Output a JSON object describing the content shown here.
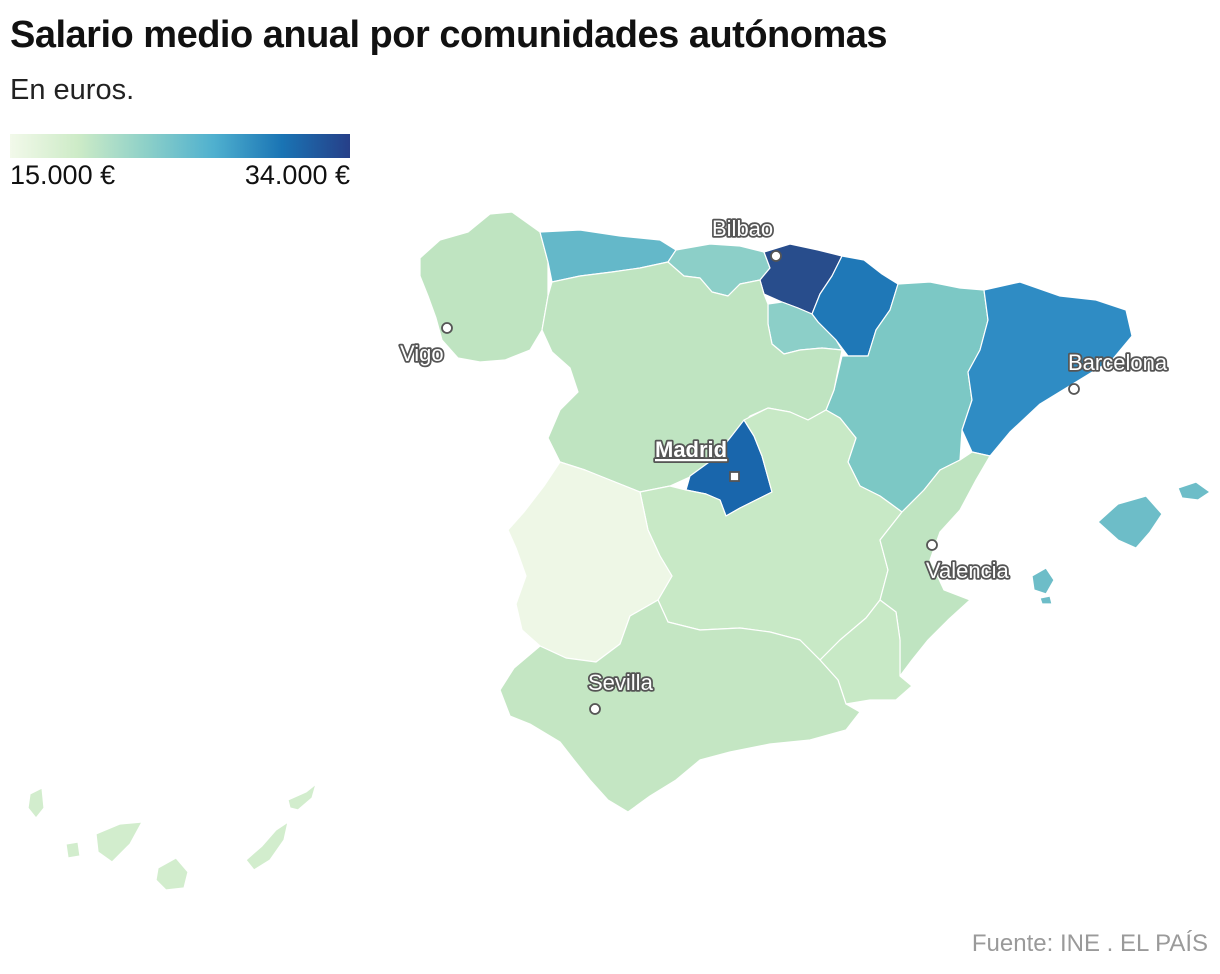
{
  "header": {
    "title": "Salario medio anual por comunidades autónomas",
    "subtitle": "En euros."
  },
  "legend": {
    "min_label": "15.000 €",
    "max_label": "34.000 €",
    "min_value": 15000,
    "max_value": 34000,
    "color_low": "#f2f9ea",
    "color_high": "#263f88"
  },
  "regions": [
    {
      "name": "Galicia",
      "color": "#bfe4c1"
    },
    {
      "name": "Asturias",
      "color": "#64b8c9"
    },
    {
      "name": "Cantabria",
      "color": "#8ccfc8"
    },
    {
      "name": "País Vasco",
      "color": "#284d8c"
    },
    {
      "name": "Navarra",
      "color": "#1f78b7"
    },
    {
      "name": "La Rioja",
      "color": "#8ccfc8"
    },
    {
      "name": "Aragón",
      "color": "#7cc8c5"
    },
    {
      "name": "Cataluña",
      "color": "#2f8cc4"
    },
    {
      "name": "Castilla y León",
      "color": "#bfe4c1"
    },
    {
      "name": "Comunidad de Madrid",
      "color": "#1966ac"
    },
    {
      "name": "Castilla-La Mancha",
      "color": "#c8e9c6"
    },
    {
      "name": "Extremadura",
      "color": "#eef7e6"
    },
    {
      "name": "Comunitat Valenciana",
      "color": "#bfe4c1"
    },
    {
      "name": "Región de Murcia",
      "color": "#c8e9c6"
    },
    {
      "name": "Andalucía",
      "color": "#c4e6c3"
    },
    {
      "name": "Illes Balears",
      "color": "#6dbdc8"
    },
    {
      "name": "Canarias",
      "color": "#d2edcd"
    }
  ],
  "cities": {
    "bilbao": "Bilbao",
    "vigo": "Vigo",
    "barcelona": "Barcelona",
    "madrid": "Madrid",
    "valencia": "Valencia",
    "sevilla": "Sevilla"
  },
  "footer": {
    "source": "Fuente: INE . EL PAÍS"
  }
}
